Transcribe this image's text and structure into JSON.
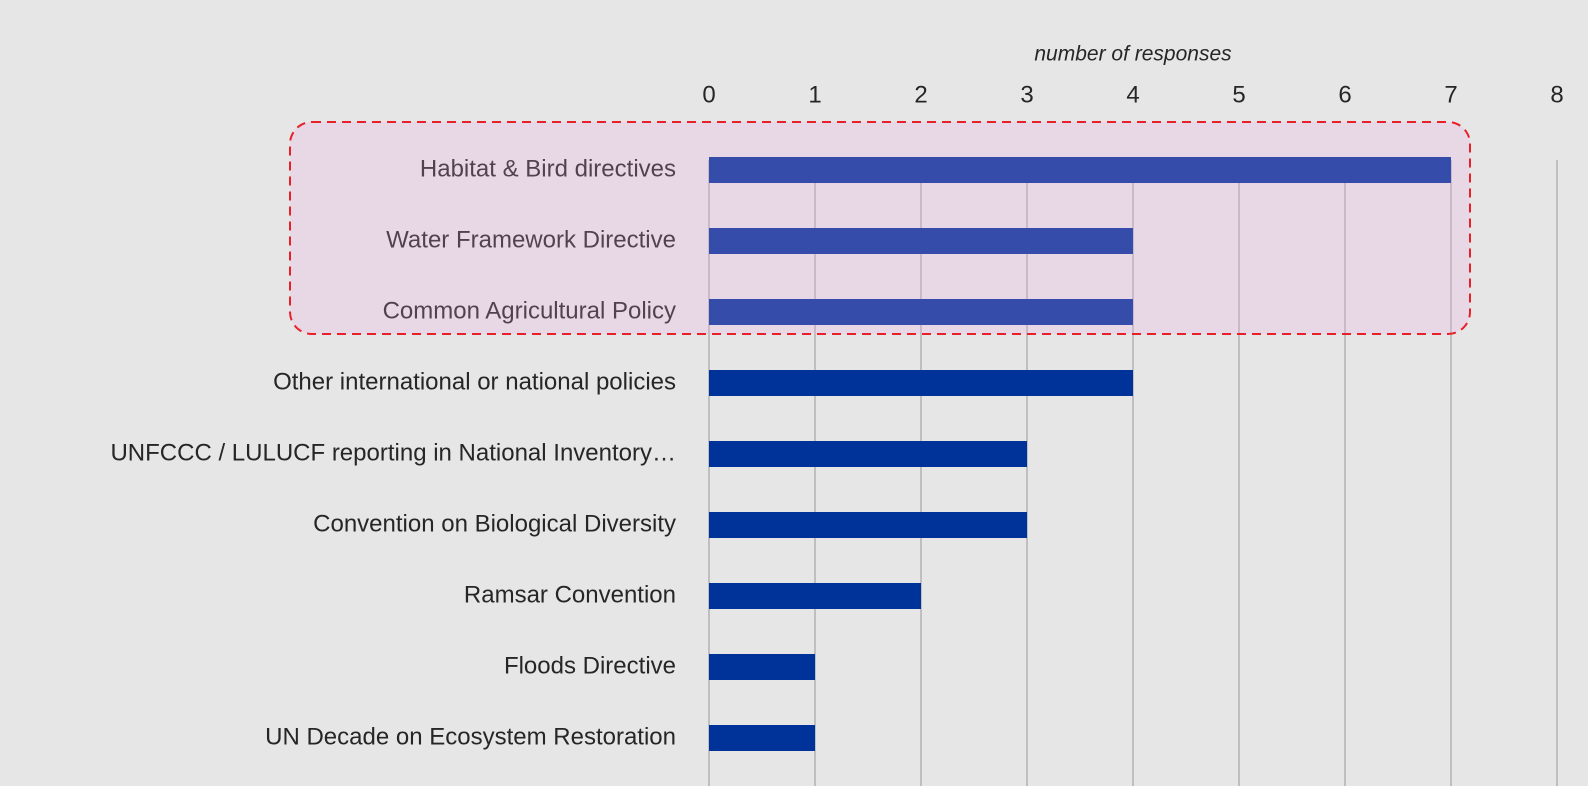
{
  "chart_data": {
    "type": "bar",
    "orientation": "horizontal",
    "x_axis_label": "number of responses",
    "categories": [
      "Habitat & Bird directives",
      "Water Framework Directive",
      "Common Agricultural Policy",
      "Other international or national policies",
      "UNFCCC / LULUCF reporting in National Inventory…",
      "Convention on Biological Diversity",
      "Ramsar Convention",
      "Floods Directive",
      "UN Decade on Ecosystem Restoration"
    ],
    "values": [
      7,
      4,
      4,
      4,
      3,
      3,
      2,
      1,
      1
    ],
    "color": "#003399",
    "xlim": [
      0,
      8
    ],
    "xticks": [
      0,
      1,
      2,
      3,
      4,
      5,
      6,
      7,
      8
    ],
    "grid": true
  }
}
